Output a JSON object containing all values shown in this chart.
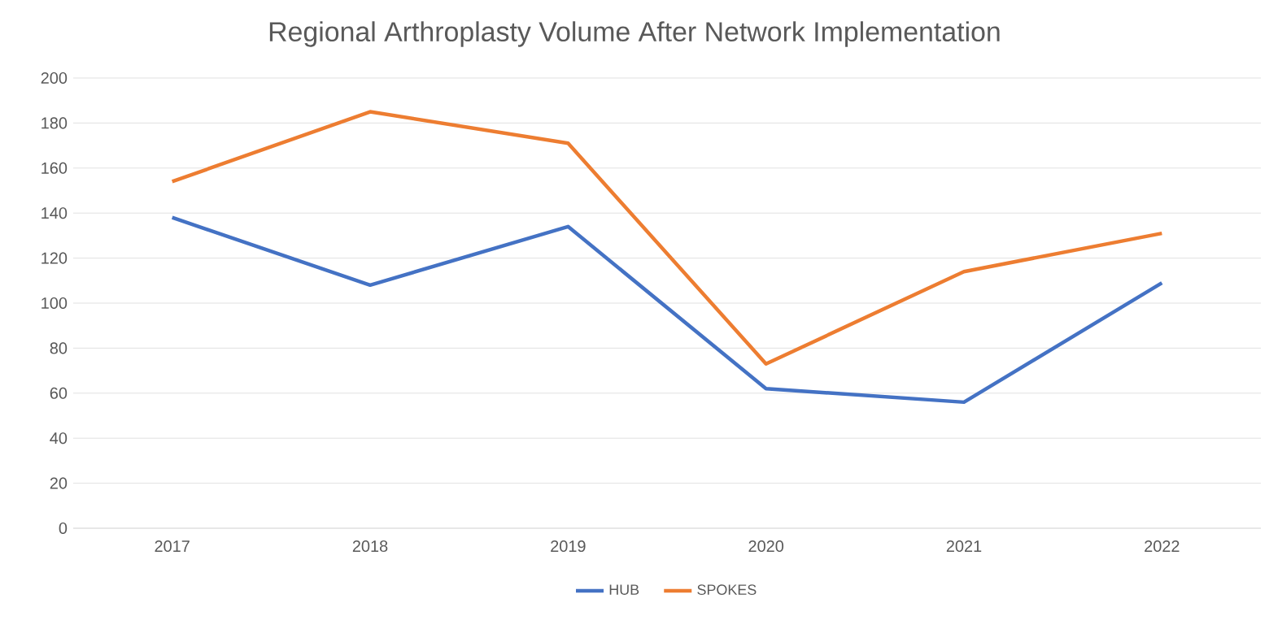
{
  "chart_data": {
    "type": "line",
    "title": "Regional Arthroplasty Volume After Network Implementation",
    "categories": [
      "2017",
      "2018",
      "2019",
      "2020",
      "2021",
      "2022"
    ],
    "series": [
      {
        "name": "HUB",
        "color": "#4472c4",
        "values": [
          138,
          108,
          134,
          62,
          56,
          109
        ]
      },
      {
        "name": "SPOKES",
        "color": "#ed7d31",
        "values": [
          154,
          185,
          171,
          73,
          114,
          131
        ]
      }
    ],
    "ylim": [
      0,
      200
    ],
    "yticks": [
      0,
      20,
      40,
      60,
      80,
      100,
      120,
      140,
      160,
      180,
      200
    ],
    "grid": "y",
    "legend": "bottom",
    "marker": "none",
    "line_style": "solid"
  }
}
